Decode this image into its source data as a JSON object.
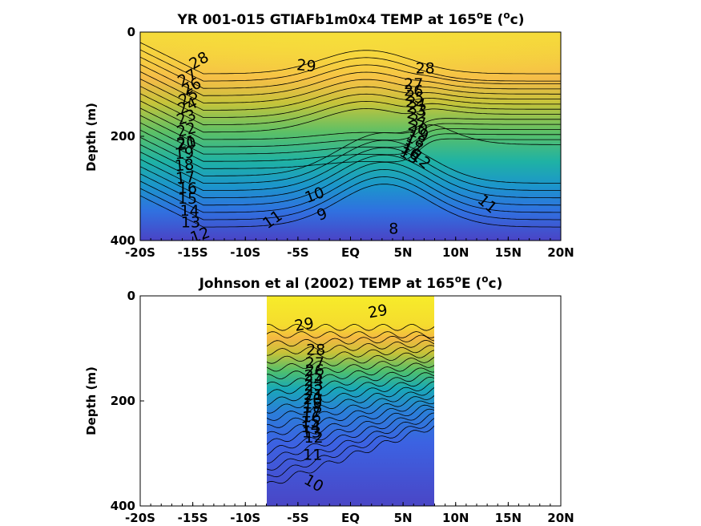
{
  "chart_data": [
    {
      "type": "heatmap",
      "title": "YR 001-015 GTIAFb1m0x4 TEMP at 165",
      "title_degree": "o",
      "title_suffix": "E (",
      "title_unit_sup": "o",
      "title_unit": "c)",
      "xlabel": "",
      "ylabel": "Depth (m)",
      "xlim": [
        -20,
        20
      ],
      "ylim": [
        0,
        400
      ],
      "x_ticks": [
        {
          "value": -20,
          "label": "-20S"
        },
        {
          "value": -15,
          "label": "-15S"
        },
        {
          "value": -10,
          "label": "-10S"
        },
        {
          "value": -5,
          "label": "-5S"
        },
        {
          "value": 0,
          "label": "EQ"
        },
        {
          "value": 5,
          "label": "5N"
        },
        {
          "value": 10,
          "label": "10N"
        },
        {
          "value": 15,
          "label": "15N"
        },
        {
          "value": 20,
          "label": "20N"
        }
      ],
      "y_ticks": [
        {
          "value": 0,
          "label": "0"
        },
        {
          "value": 200,
          "label": "200"
        },
        {
          "value": 400,
          "label": "400"
        }
      ],
      "data_x_range": [
        -20,
        20
      ],
      "contour_levels": [
        8,
        9,
        10,
        11,
        12,
        13,
        14,
        15,
        16,
        17,
        18,
        19,
        20,
        21,
        22,
        23,
        24,
        25,
        26,
        27,
        28,
        29
      ],
      "contour_labels": [
        {
          "text": "29",
          "lat": -4.2,
          "depth": 65,
          "rot": 5
        },
        {
          "text": "28",
          "lat": -14.4,
          "depth": 55,
          "rot": -30
        },
        {
          "text": "27",
          "lat": -15.5,
          "depth": 88,
          "rot": -30
        },
        {
          "text": "26",
          "lat": -15.1,
          "depth": 105,
          "rot": -30
        },
        {
          "text": "25",
          "lat": -15.4,
          "depth": 125,
          "rot": -30
        },
        {
          "text": "24",
          "lat": -15.5,
          "depth": 142,
          "rot": -25
        },
        {
          "text": "23",
          "lat": -15.6,
          "depth": 164,
          "rot": -20
        },
        {
          "text": "22",
          "lat": -15.6,
          "depth": 188,
          "rot": -15
        },
        {
          "text": "21",
          "lat": -15.6,
          "depth": 212,
          "rot": -10
        },
        {
          "text": "20",
          "lat": -15.6,
          "depth": 215,
          "rot": -10
        },
        {
          "text": "19",
          "lat": -15.8,
          "depth": 233,
          "rot": -5
        },
        {
          "text": "18",
          "lat": -15.8,
          "depth": 256,
          "rot": -5
        },
        {
          "text": "17",
          "lat": -15.7,
          "depth": 280,
          "rot": -5
        },
        {
          "text": "16",
          "lat": -15.5,
          "depth": 300,
          "rot": 0
        },
        {
          "text": "15",
          "lat": -15.5,
          "depth": 320,
          "rot": 0
        },
        {
          "text": "14",
          "lat": -15.3,
          "depth": 343,
          "rot": 0
        },
        {
          "text": "13",
          "lat": -15.2,
          "depth": 365,
          "rot": 0
        },
        {
          "text": "12",
          "lat": -14.3,
          "depth": 390,
          "rot": -20
        },
        {
          "text": "11",
          "lat": -7.4,
          "depth": 360,
          "rot": -35
        },
        {
          "text": "10",
          "lat": -3.4,
          "depth": 313,
          "rot": -20
        },
        {
          "text": "9",
          "lat": -2.7,
          "depth": 350,
          "rot": -20
        },
        {
          "text": "8",
          "lat": 4.1,
          "depth": 378,
          "rot": 0
        },
        {
          "text": "11",
          "lat": 13.0,
          "depth": 330,
          "rot": 40
        },
        {
          "text": "28",
          "lat": 7.1,
          "depth": 70,
          "rot": 0
        },
        {
          "text": "27",
          "lat": 6.0,
          "depth": 100,
          "rot": 0
        },
        {
          "text": "26",
          "lat": 6.0,
          "depth": 113,
          "rot": 0
        },
        {
          "text": "25",
          "lat": 6.1,
          "depth": 125,
          "rot": 10
        },
        {
          "text": "24",
          "lat": 6.2,
          "depth": 137,
          "rot": 10
        },
        {
          "text": "23",
          "lat": 6.3,
          "depth": 148,
          "rot": 15
        },
        {
          "text": "22",
          "lat": 6.3,
          "depth": 160,
          "rot": 15
        },
        {
          "text": "21",
          "lat": 6.4,
          "depth": 172,
          "rot": 20
        },
        {
          "text": "20",
          "lat": 6.4,
          "depth": 184,
          "rot": 20
        },
        {
          "text": "19",
          "lat": 6.5,
          "depth": 195,
          "rot": 20
        },
        {
          "text": "18",
          "lat": 6.2,
          "depth": 207,
          "rot": 25
        },
        {
          "text": "17",
          "lat": 5.9,
          "depth": 220,
          "rot": 25
        },
        {
          "text": "16",
          "lat": 5.7,
          "depth": 230,
          "rot": 30
        },
        {
          "text": "15",
          "lat": 5.6,
          "depth": 237,
          "rot": 30
        },
        {
          "text": "12",
          "lat": 6.7,
          "depth": 245,
          "rot": 40
        }
      ]
    },
    {
      "type": "heatmap",
      "title": "Johnson et al (2002) TEMP at 165",
      "title_degree": "o",
      "title_suffix": "E (",
      "title_unit_sup": "o",
      "title_unit": "c)",
      "xlabel": "",
      "ylabel": "Depth (m)",
      "xlim": [
        -20,
        20
      ],
      "ylim": [
        0,
        400
      ],
      "x_ticks": [
        {
          "value": -20,
          "label": "-20S"
        },
        {
          "value": -15,
          "label": "-15S"
        },
        {
          "value": -10,
          "label": "-10S"
        },
        {
          "value": -5,
          "label": "-5S"
        },
        {
          "value": 0,
          "label": "EQ"
        },
        {
          "value": 5,
          "label": "5N"
        },
        {
          "value": 10,
          "label": "10N"
        },
        {
          "value": 15,
          "label": "15N"
        },
        {
          "value": 20,
          "label": "20N"
        }
      ],
      "y_ticks": [
        {
          "value": 0,
          "label": "0"
        },
        {
          "value": 200,
          "label": "200"
        },
        {
          "value": 400,
          "label": "400"
        }
      ],
      "data_x_range": [
        -8,
        8
      ],
      "contour_levels": [
        10,
        11,
        12,
        13,
        14,
        15,
        16,
        17,
        18,
        19,
        20,
        21,
        22,
        23,
        24,
        25,
        26,
        27,
        28,
        29
      ],
      "contour_labels": [
        {
          "text": "29",
          "lat": -4.4,
          "depth": 55,
          "rot": -10
        },
        {
          "text": "29",
          "lat": 2.6,
          "depth": 30,
          "rot": -10
        },
        {
          "text": "28",
          "lat": -3.3,
          "depth": 103,
          "rot": 0
        },
        {
          "text": "27",
          "lat": -3.4,
          "depth": 128,
          "rot": 0
        },
        {
          "text": "26",
          "lat": -3.4,
          "depth": 142,
          "rot": 0
        },
        {
          "text": "25",
          "lat": -3.5,
          "depth": 152,
          "rot": 0
        },
        {
          "text": "24",
          "lat": -3.5,
          "depth": 162,
          "rot": 0
        },
        {
          "text": "23",
          "lat": -3.5,
          "depth": 171,
          "rot": 0
        },
        {
          "text": "22",
          "lat": -3.5,
          "depth": 180,
          "rot": 0
        },
        {
          "text": "21",
          "lat": -3.5,
          "depth": 189,
          "rot": 0
        },
        {
          "text": "20",
          "lat": -3.6,
          "depth": 197,
          "rot": 0
        },
        {
          "text": "19",
          "lat": -3.6,
          "depth": 205,
          "rot": 0
        },
        {
          "text": "18",
          "lat": -3.6,
          "depth": 213,
          "rot": 0
        },
        {
          "text": "17",
          "lat": -3.7,
          "depth": 222,
          "rot": 0
        },
        {
          "text": "16",
          "lat": -3.7,
          "depth": 231,
          "rot": 0
        },
        {
          "text": "15",
          "lat": -3.8,
          "depth": 240,
          "rot": 0
        },
        {
          "text": "14",
          "lat": -3.8,
          "depth": 250,
          "rot": 0
        },
        {
          "text": "13",
          "lat": -3.7,
          "depth": 260,
          "rot": 0
        },
        {
          "text": "12",
          "lat": -3.5,
          "depth": 270,
          "rot": 0
        },
        {
          "text": "11",
          "lat": -3.6,
          "depth": 303,
          "rot": 0
        },
        {
          "text": "10",
          "lat": -3.5,
          "depth": 357,
          "rot": 30
        }
      ]
    }
  ]
}
